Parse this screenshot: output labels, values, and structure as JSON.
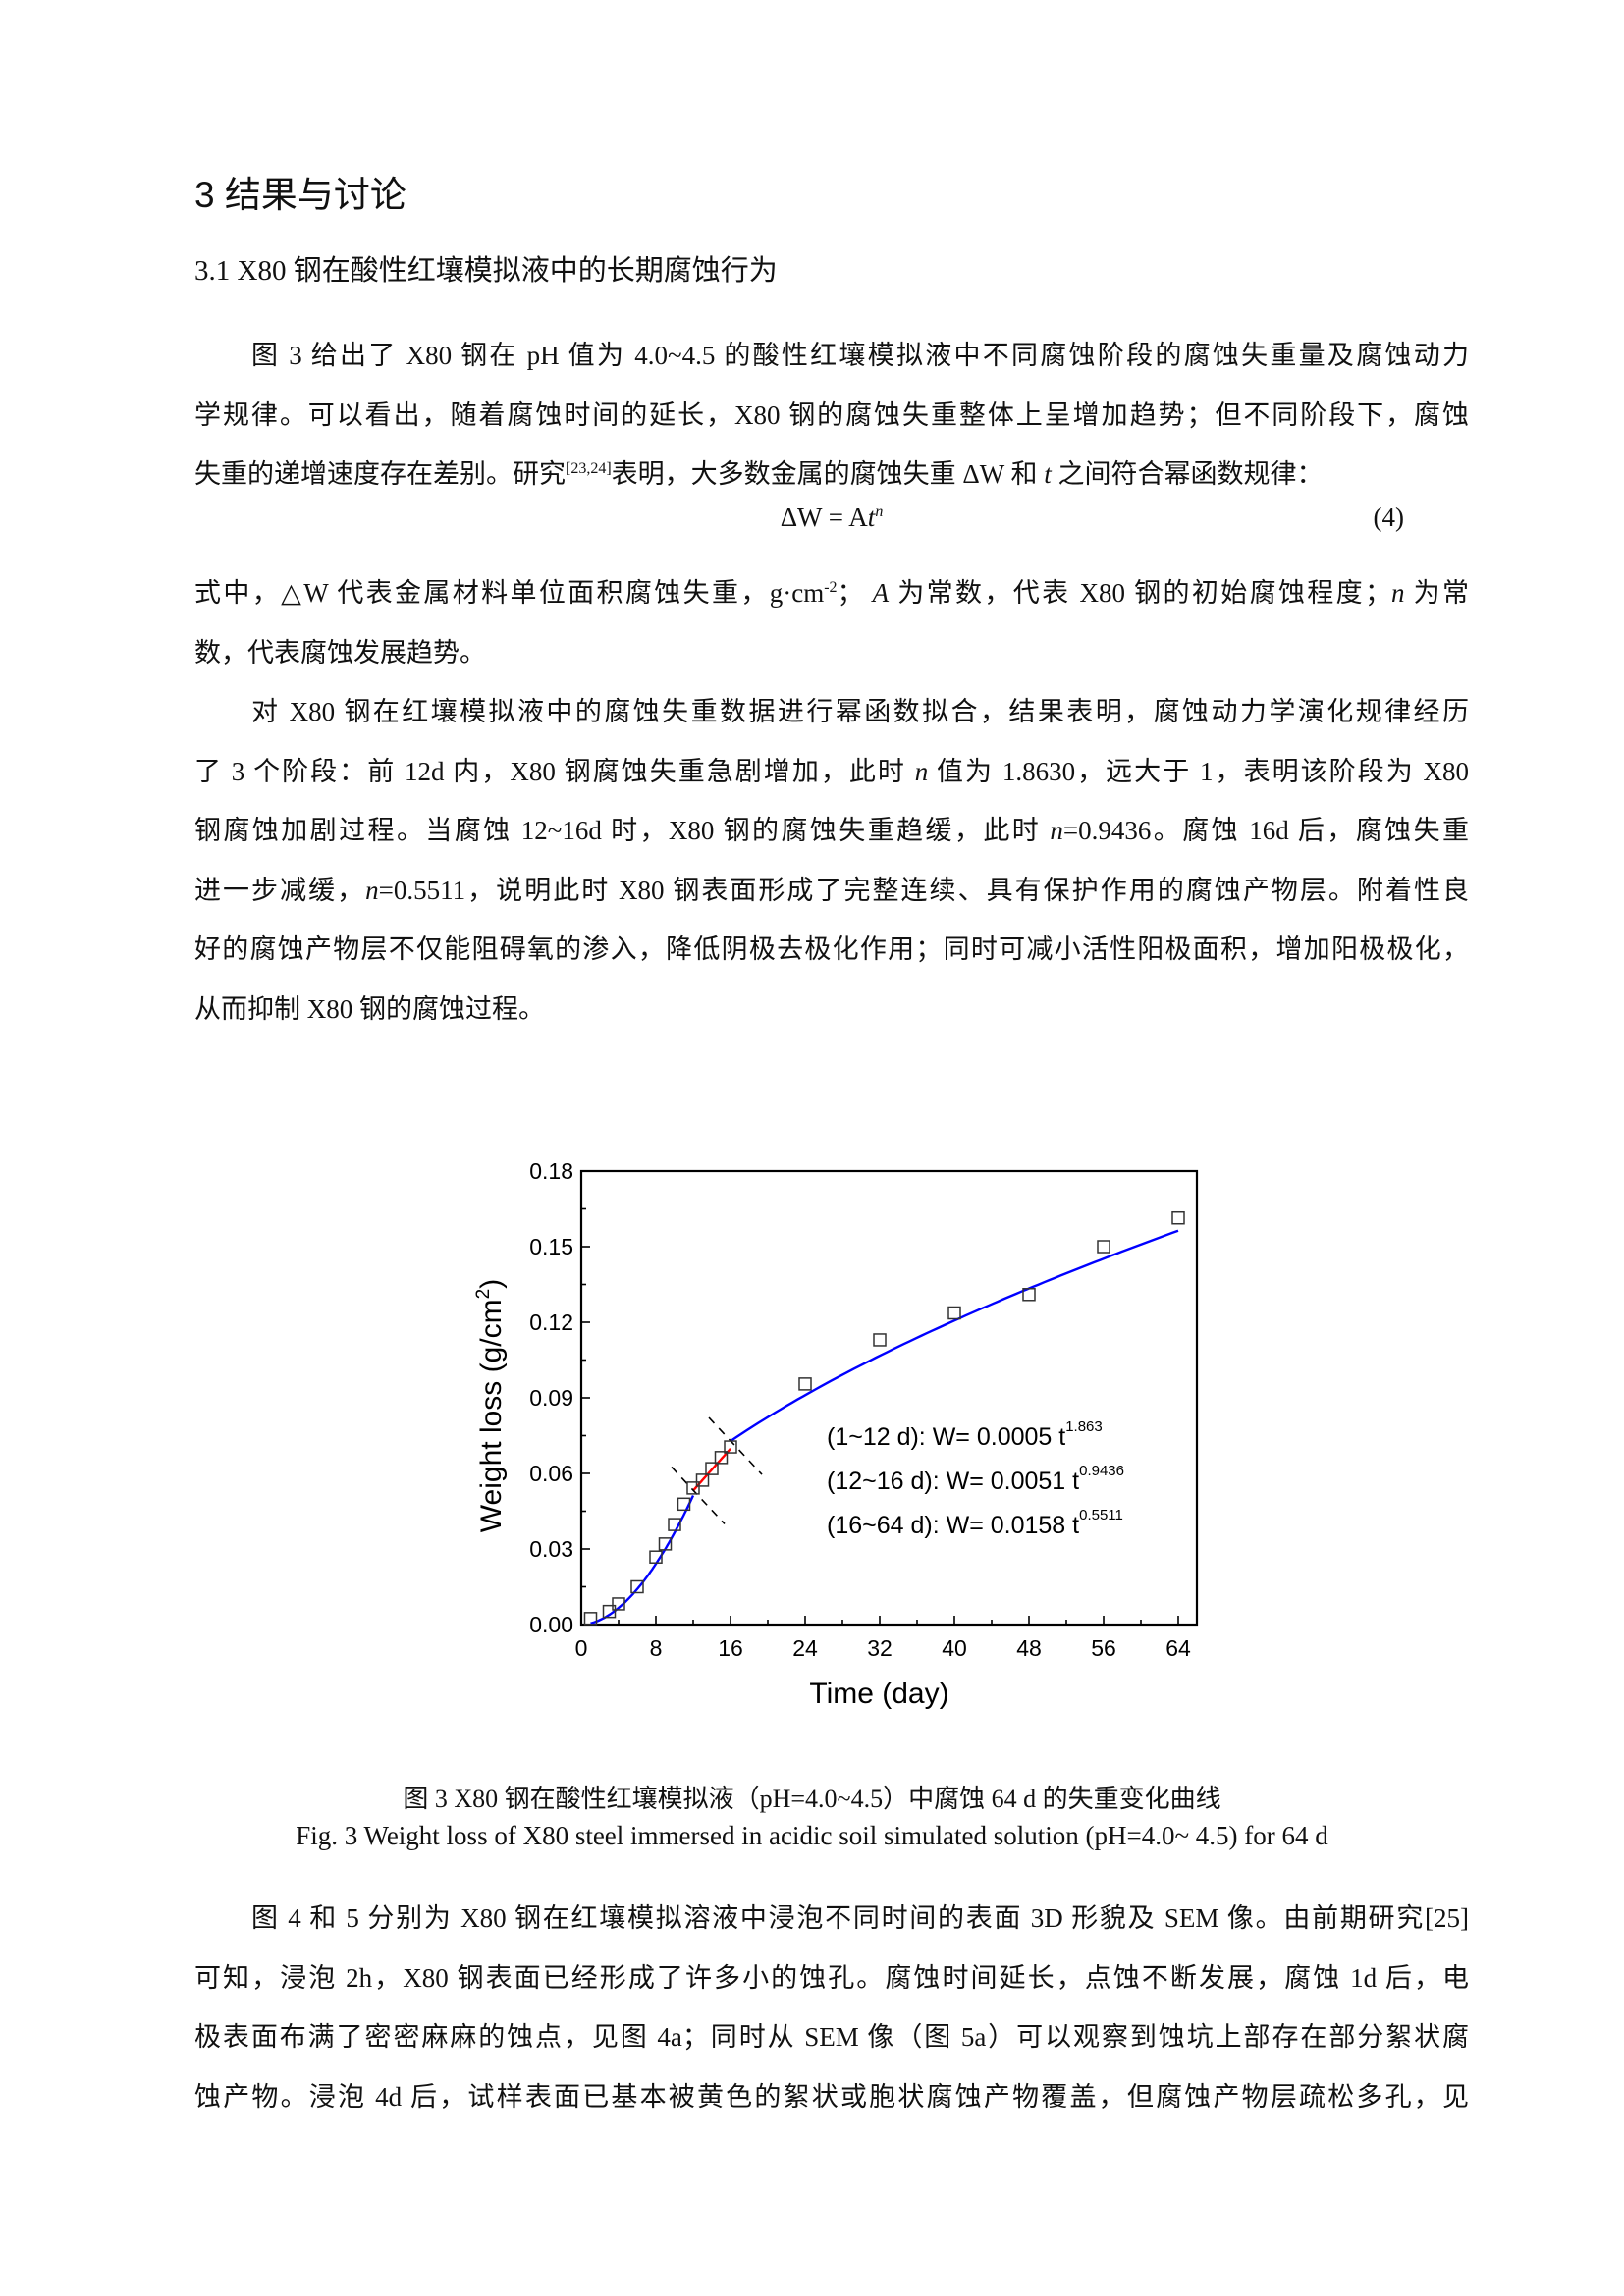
{
  "section_heading": "3  结果与讨论",
  "subsection_heading": "3.1 X80 钢在酸性红壤模拟液中的长期腐蚀行为",
  "paragraph1": [
    [
      {
        "t": "图 3 给出了 X80 钢在 pH 值为 4.0~4.5 的酸性红壤模拟液中不同腐蚀阶段的腐蚀失重量及腐蚀动力"
      }
    ],
    [
      {
        "t": "学规律。可以看出，随着腐蚀时间的延长，X80 钢的腐蚀失重整体上呈增加趋势；但不同阶段下，腐蚀"
      }
    ],
    [
      {
        "t": "失重的递增速度存在差别。研究"
      },
      {
        "t": "[23,24]",
        "s": "sup"
      },
      {
        "t": "表明，大多数金属的腐蚀失重 ΔW 和 "
      },
      {
        "t": "t",
        "s": "i"
      },
      {
        "t": " 之间符合幂函数规律："
      }
    ]
  ],
  "equation": {
    "lhs": "ΔW = A",
    "var": "t",
    "exp": "n",
    "number": "(4)"
  },
  "paragraph2": [
    [
      {
        "t": "式中，△W 代表金属材料单位面积腐蚀失重，g·cm"
      },
      {
        "t": "-2",
        "s": "sup"
      },
      {
        "t": "；  "
      },
      {
        "t": "A",
        "s": "i"
      },
      {
        "t": " 为常数，代表 X80 钢的初始腐蚀程度；"
      },
      {
        "t": "n",
        "s": "i"
      },
      {
        "t": " 为常"
      }
    ],
    [
      {
        "t": "数，代表腐蚀发展趋势。"
      }
    ]
  ],
  "paragraph3": [
    [
      {
        "t": "对  X80  钢在红壤模拟液中的腐蚀失重数据进行幂函数拟合，结果表明，腐蚀动力学演化规律经历"
      }
    ],
    [
      {
        "t": "了 3 个阶段：前 12d 内，X80 钢腐蚀失重急剧增加，此时 "
      },
      {
        "t": "n",
        "s": "i"
      },
      {
        "t": " 值为 1.8630，远大于 1，表明该阶段为 X80"
      }
    ],
    [
      {
        "t": "钢腐蚀加剧过程。当腐蚀 12~16d 时，X80 钢的腐蚀失重趋缓，此时 "
      },
      {
        "t": "n",
        "s": "i"
      },
      {
        "t": "=0.9436。腐蚀 16d 后，腐蚀失重"
      }
    ],
    [
      {
        "t": "进一步减缓，"
      },
      {
        "t": "n",
        "s": "i"
      },
      {
        "t": "=0.5511，说明此时 X80 钢表面形成了完整连续、具有保护作用的腐蚀产物层。附着性良"
      }
    ],
    [
      {
        "t": "好的腐蚀产物层不仅能阻碍氧的渗入，降低阴极去极化作用；同时可减小活性阳极面积，增加阳极极化，"
      }
    ],
    [
      {
        "t": "从而抑制 X80 钢的腐蚀过程。"
      }
    ]
  ],
  "paragraph4": [
    [
      {
        "t": "图 4 和 5 分别为 X80 钢在红壤模拟溶液中浸泡不同时间的表面 3D 形貌及 SEM 像。由前期研究[25]"
      }
    ],
    [
      {
        "t": "可知，浸泡 2h，X80 钢表面已经形成了许多小的蚀孔。腐蚀时间延长，点蚀不断发展，腐蚀 1d 后，电"
      }
    ],
    [
      {
        "t": "极表面布满了密密麻麻的蚀点，见图 4a；同时从 SEM 像（图 5a）可以观察到蚀坑上部存在部分絮状腐"
      }
    ],
    [
      {
        "t": "蚀产物。浸泡 4d 后，试样表面已基本被黄色的絮状或胞状腐蚀产物覆盖，但腐蚀产物层疏松多孔，见"
      }
    ]
  ],
  "caption_cn": "图 3 X80 钢在酸性红壤模拟液（pH=4.0~4.5）中腐蚀 64 d 的失重变化曲线",
  "caption_en": "Fig. 3 Weight loss of X80 steel immersed in acidic soil simulated solution (pH=4.0~ 4.5) for 64 d",
  "chart_data": {
    "type": "scatter",
    "title": "",
    "xlabel": "Time (day)",
    "ylabel_main": "Weight loss (g/cm",
    "ylabel_sup": "2",
    "ylabel_end": ")",
    "xlim": [
      0,
      66
    ],
    "ylim": [
      0,
      0.18
    ],
    "xticks": [
      "0",
      "8",
      "16",
      "24",
      "32",
      "40",
      "48",
      "56",
      "64"
    ],
    "yticks": [
      "0.00",
      "0.03",
      "0.06",
      "0.09",
      "0.12",
      "0.15",
      "0.18"
    ],
    "grid": false,
    "points": {
      "x": [
        1,
        3,
        4,
        6,
        8,
        9,
        10,
        11,
        12,
        13,
        14,
        15,
        16,
        24,
        32,
        40,
        48,
        56,
        64
      ],
      "y": [
        0.0024,
        0.0052,
        0.0082,
        0.015,
        0.0268,
        0.032,
        0.0397,
        0.0478,
        0.0542,
        0.0573,
        0.0619,
        0.0663,
        0.0705,
        0.0955,
        0.113,
        0.1237,
        0.131,
        0.15,
        0.1614
      ]
    },
    "fits": [
      {
        "range": [
          1,
          12
        ],
        "A": 0.0005,
        "n": 1.863,
        "color": "#0000ff",
        "label": "(1~12 d):   ",
        "eq": "W= 0.0005 t",
        "exp": "1.863"
      },
      {
        "range": [
          12,
          16
        ],
        "A": 0.0051,
        "n": 0.9436,
        "color": "#ff0000",
        "label": "(12~16 d): ",
        "eq": "W= 0.0051 t",
        "exp": "0.9436"
      },
      {
        "range": [
          16,
          64
        ],
        "A": 0.0158,
        "n": 0.5511,
        "color": "#0000ff",
        "label": "(16~64 d): ",
        "eq": "W= 0.0158 t",
        "exp": "0.5511"
      }
    ],
    "stage_boundaries": [
      12,
      16
    ]
  }
}
